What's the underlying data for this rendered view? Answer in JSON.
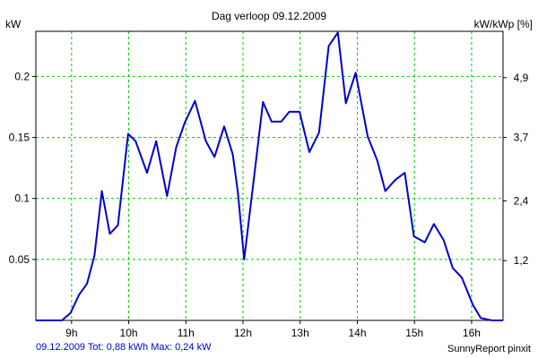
{
  "chart_data": {
    "type": "line",
    "title": "Dag  verloop 09.12.2009",
    "ylabel_left": "kW",
    "ylabel_right": "kW/kWp [%]",
    "x_ticks": [
      {
        "label": "9h",
        "t": 9
      },
      {
        "label": "10h",
        "t": 10
      },
      {
        "label": "11h",
        "t": 11
      },
      {
        "label": "12h",
        "t": 12
      },
      {
        "label": "13h",
        "t": 13
      },
      {
        "label": "14h",
        "t": 14
      },
      {
        "label": "15h",
        "t": 15
      },
      {
        "label": "16h",
        "t": 16
      }
    ],
    "xlim": [
      8.375,
      16.55
    ],
    "ylim": [
      0,
      0.237
    ],
    "y_ticks": [
      {
        "label": "0.05",
        "v": 0.05
      },
      {
        "label": "0.1",
        "v": 0.1
      },
      {
        "label": "0.15",
        "v": 0.15
      },
      {
        "label": "0.2",
        "v": 0.2
      }
    ],
    "y2_ticks": [
      {
        "label": "1,2",
        "v": 0.049
      },
      {
        "label": "2,4",
        "v": 0.098
      },
      {
        "label": "3,7",
        "v": 0.15
      },
      {
        "label": "4,9",
        "v": 0.199
      }
    ],
    "grid": true,
    "grid_color": "#00cc00",
    "line_color": "#0000cc",
    "series": [
      {
        "x": [
          8.375,
          8.83,
          8.98,
          9.13,
          9.27,
          9.4,
          9.53,
          9.67,
          9.81,
          9.99,
          10.12,
          10.32,
          10.48,
          10.67,
          10.83,
          10.98,
          11.16,
          11.35,
          11.5,
          11.67,
          11.82,
          11.91,
          12.02,
          12.21,
          12.35,
          12.5,
          12.67,
          12.81,
          12.99,
          13.16,
          13.33,
          13.5,
          13.66,
          13.8,
          13.97,
          14.18,
          14.35,
          14.49,
          14.66,
          14.83,
          14.99,
          15.18,
          15.34,
          15.51,
          15.67,
          15.83,
          16.02,
          16.16,
          16.36,
          16.55
        ],
        "y": [
          0.0,
          0.0,
          0.006,
          0.021,
          0.03,
          0.053,
          0.106,
          0.071,
          0.078,
          0.153,
          0.147,
          0.121,
          0.147,
          0.102,
          0.142,
          0.162,
          0.18,
          0.147,
          0.134,
          0.159,
          0.136,
          0.105,
          0.05,
          0.124,
          0.179,
          0.163,
          0.163,
          0.171,
          0.171,
          0.138,
          0.154,
          0.225,
          0.236,
          0.178,
          0.203,
          0.151,
          0.131,
          0.106,
          0.115,
          0.121,
          0.069,
          0.064,
          0.079,
          0.066,
          0.043,
          0.035,
          0.013,
          0.002,
          0.0,
          0.0
        ]
      }
    ]
  },
  "footer": {
    "left_text": "09.12.2009 Tot: 0,88 kWh Max: 0,24 kW",
    "left_color": "#0000cc",
    "right_text": "SunnyReport pinxit"
  }
}
